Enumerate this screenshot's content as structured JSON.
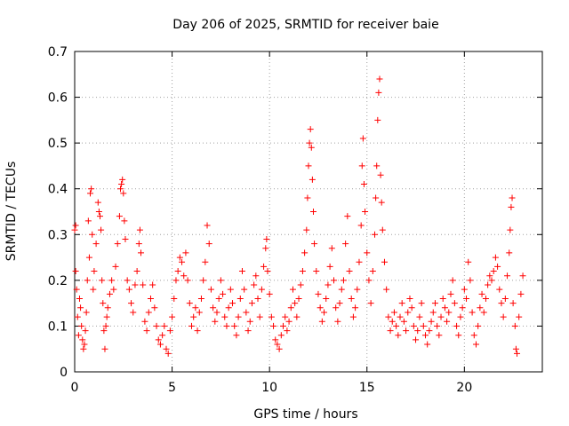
{
  "chart_data": {
    "type": "scatter",
    "title": "Day 206 of 2025, SRMTID for receiver baie",
    "xlabel": "GPS time / hours",
    "ylabel": "SRMTID / TECUs",
    "xlim": [
      0,
      24
    ],
    "ylim": [
      0,
      0.7
    ],
    "xticks": [
      0,
      5,
      10,
      15,
      20
    ],
    "xtick_labels": [
      "0",
      "5",
      "10",
      "15",
      "20"
    ],
    "yticks": [
      0,
      0.1,
      0.2,
      0.3,
      0.4,
      0.5,
      0.6,
      0.7
    ],
    "ytick_labels": [
      "0",
      "0.1",
      "0.2",
      "0.3",
      "0.4",
      "0.5",
      "0.6",
      "0.7"
    ],
    "grid": true,
    "marker": "+",
    "color": "#ff0000",
    "series": [
      {
        "name": "SRMTID",
        "points": [
          [
            0.0,
            0.31
          ],
          [
            0.05,
            0.32
          ],
          [
            0.05,
            0.22
          ],
          [
            0.1,
            0.18
          ],
          [
            0.15,
            0.12
          ],
          [
            0.2,
            0.08
          ],
          [
            0.25,
            0.16
          ],
          [
            0.3,
            0.14
          ],
          [
            0.35,
            0.1
          ],
          [
            0.4,
            0.07
          ],
          [
            0.45,
            0.05
          ],
          [
            0.5,
            0.06
          ],
          [
            0.55,
            0.09
          ],
          [
            0.6,
            0.13
          ],
          [
            0.65,
            0.2
          ],
          [
            0.7,
            0.33
          ],
          [
            0.75,
            0.25
          ],
          [
            0.8,
            0.39
          ],
          [
            0.85,
            0.4
          ],
          [
            0.9,
            0.3
          ],
          [
            0.95,
            0.18
          ],
          [
            1.0,
            0.22
          ],
          [
            1.1,
            0.28
          ],
          [
            1.2,
            0.37
          ],
          [
            1.25,
            0.35
          ],
          [
            1.3,
            0.34
          ],
          [
            1.35,
            0.31
          ],
          [
            1.4,
            0.2
          ],
          [
            1.45,
            0.15
          ],
          [
            1.5,
            0.09
          ],
          [
            1.55,
            0.05
          ],
          [
            1.6,
            0.1
          ],
          [
            1.65,
            0.12
          ],
          [
            1.7,
            0.14
          ],
          [
            1.8,
            0.17
          ],
          [
            1.9,
            0.2
          ],
          [
            2.0,
            0.18
          ],
          [
            2.1,
            0.23
          ],
          [
            2.2,
            0.28
          ],
          [
            2.3,
            0.34
          ],
          [
            2.35,
            0.4
          ],
          [
            2.4,
            0.41
          ],
          [
            2.45,
            0.42
          ],
          [
            2.5,
            0.39
          ],
          [
            2.55,
            0.33
          ],
          [
            2.6,
            0.29
          ],
          [
            2.7,
            0.2
          ],
          [
            2.8,
            0.18
          ],
          [
            2.9,
            0.15
          ],
          [
            3.0,
            0.13
          ],
          [
            3.1,
            0.19
          ],
          [
            3.2,
            0.22
          ],
          [
            3.3,
            0.28
          ],
          [
            3.35,
            0.31
          ],
          [
            3.4,
            0.26
          ],
          [
            3.5,
            0.19
          ],
          [
            3.6,
            0.11
          ],
          [
            3.7,
            0.09
          ],
          [
            3.8,
            0.13
          ],
          [
            3.9,
            0.16
          ],
          [
            4.0,
            0.19
          ],
          [
            4.1,
            0.14
          ],
          [
            4.2,
            0.1
          ],
          [
            4.3,
            0.07
          ],
          [
            4.4,
            0.06
          ],
          [
            4.5,
            0.08
          ],
          [
            4.6,
            0.1
          ],
          [
            4.7,
            0.05
          ],
          [
            4.8,
            0.04
          ],
          [
            4.9,
            0.09
          ],
          [
            5.0,
            0.12
          ],
          [
            5.1,
            0.16
          ],
          [
            5.2,
            0.2
          ],
          [
            5.3,
            0.22
          ],
          [
            5.4,
            0.25
          ],
          [
            5.5,
            0.24
          ],
          [
            5.6,
            0.21
          ],
          [
            5.7,
            0.26
          ],
          [
            5.8,
            0.2
          ],
          [
            5.9,
            0.15
          ],
          [
            6.0,
            0.1
          ],
          [
            6.1,
            0.12
          ],
          [
            6.2,
            0.14
          ],
          [
            6.3,
            0.09
          ],
          [
            6.4,
            0.13
          ],
          [
            6.5,
            0.16
          ],
          [
            6.6,
            0.2
          ],
          [
            6.7,
            0.24
          ],
          [
            6.8,
            0.32
          ],
          [
            6.9,
            0.28
          ],
          [
            7.0,
            0.18
          ],
          [
            7.1,
            0.14
          ],
          [
            7.2,
            0.11
          ],
          [
            7.3,
            0.13
          ],
          [
            7.4,
            0.16
          ],
          [
            7.5,
            0.2
          ],
          [
            7.6,
            0.17
          ],
          [
            7.7,
            0.12
          ],
          [
            7.8,
            0.1
          ],
          [
            7.9,
            0.14
          ],
          [
            8.0,
            0.18
          ],
          [
            8.1,
            0.15
          ],
          [
            8.2,
            0.1
          ],
          [
            8.3,
            0.08
          ],
          [
            8.4,
            0.12
          ],
          [
            8.5,
            0.16
          ],
          [
            8.6,
            0.22
          ],
          [
            8.7,
            0.18
          ],
          [
            8.8,
            0.13
          ],
          [
            8.9,
            0.09
          ],
          [
            9.0,
            0.11
          ],
          [
            9.1,
            0.15
          ],
          [
            9.2,
            0.19
          ],
          [
            9.3,
            0.21
          ],
          [
            9.4,
            0.16
          ],
          [
            9.5,
            0.12
          ],
          [
            9.6,
            0.18
          ],
          [
            9.7,
            0.23
          ],
          [
            9.8,
            0.27
          ],
          [
            9.85,
            0.29
          ],
          [
            9.9,
            0.22
          ],
          [
            10.0,
            0.17
          ],
          [
            10.1,
            0.12
          ],
          [
            10.2,
            0.1
          ],
          [
            10.3,
            0.07
          ],
          [
            10.4,
            0.06
          ],
          [
            10.5,
            0.05
          ],
          [
            10.6,
            0.08
          ],
          [
            10.7,
            0.1
          ],
          [
            10.8,
            0.12
          ],
          [
            10.9,
            0.09
          ],
          [
            11.0,
            0.11
          ],
          [
            11.1,
            0.14
          ],
          [
            11.2,
            0.18
          ],
          [
            11.3,
            0.15
          ],
          [
            11.4,
            0.12
          ],
          [
            11.5,
            0.16
          ],
          [
            11.6,
            0.19
          ],
          [
            11.7,
            0.22
          ],
          [
            11.8,
            0.26
          ],
          [
            11.9,
            0.31
          ],
          [
            11.95,
            0.38
          ],
          [
            12.0,
            0.45
          ],
          [
            12.05,
            0.5
          ],
          [
            12.1,
            0.53
          ],
          [
            12.15,
            0.49
          ],
          [
            12.2,
            0.42
          ],
          [
            12.25,
            0.35
          ],
          [
            12.3,
            0.28
          ],
          [
            12.4,
            0.22
          ],
          [
            12.5,
            0.17
          ],
          [
            12.6,
            0.14
          ],
          [
            12.7,
            0.11
          ],
          [
            12.8,
            0.13
          ],
          [
            12.9,
            0.16
          ],
          [
            13.0,
            0.19
          ],
          [
            13.1,
            0.23
          ],
          [
            13.2,
            0.27
          ],
          [
            13.3,
            0.2
          ],
          [
            13.4,
            0.14
          ],
          [
            13.5,
            0.11
          ],
          [
            13.6,
            0.15
          ],
          [
            13.7,
            0.18
          ],
          [
            13.8,
            0.2
          ],
          [
            13.9,
            0.28
          ],
          [
            14.0,
            0.34
          ],
          [
            14.1,
            0.22
          ],
          [
            14.2,
            0.16
          ],
          [
            14.3,
            0.12
          ],
          [
            14.4,
            0.14
          ],
          [
            14.5,
            0.18
          ],
          [
            14.6,
            0.24
          ],
          [
            14.7,
            0.32
          ],
          [
            14.75,
            0.45
          ],
          [
            14.8,
            0.51
          ],
          [
            14.85,
            0.41
          ],
          [
            14.9,
            0.35
          ],
          [
            15.0,
            0.26
          ],
          [
            15.1,
            0.2
          ],
          [
            15.2,
            0.15
          ],
          [
            15.3,
            0.22
          ],
          [
            15.4,
            0.3
          ],
          [
            15.45,
            0.38
          ],
          [
            15.5,
            0.45
          ],
          [
            15.55,
            0.55
          ],
          [
            15.6,
            0.61
          ],
          [
            15.65,
            0.64
          ],
          [
            15.7,
            0.43
          ],
          [
            15.75,
            0.37
          ],
          [
            15.8,
            0.31
          ],
          [
            15.9,
            0.24
          ],
          [
            16.0,
            0.18
          ],
          [
            16.1,
            0.12
          ],
          [
            16.2,
            0.09
          ],
          [
            16.3,
            0.11
          ],
          [
            16.4,
            0.13
          ],
          [
            16.5,
            0.1
          ],
          [
            16.6,
            0.08
          ],
          [
            16.7,
            0.12
          ],
          [
            16.8,
            0.15
          ],
          [
            16.9,
            0.11
          ],
          [
            17.0,
            0.09
          ],
          [
            17.1,
            0.13
          ],
          [
            17.2,
            0.16
          ],
          [
            17.3,
            0.14
          ],
          [
            17.4,
            0.1
          ],
          [
            17.5,
            0.07
          ],
          [
            17.6,
            0.09
          ],
          [
            17.7,
            0.12
          ],
          [
            17.8,
            0.15
          ],
          [
            17.9,
            0.1
          ],
          [
            18.0,
            0.08
          ],
          [
            18.1,
            0.06
          ],
          [
            18.2,
            0.09
          ],
          [
            18.3,
            0.11
          ],
          [
            18.4,
            0.13
          ],
          [
            18.5,
            0.15
          ],
          [
            18.6,
            0.1
          ],
          [
            18.7,
            0.08
          ],
          [
            18.8,
            0.12
          ],
          [
            18.9,
            0.16
          ],
          [
            19.0,
            0.14
          ],
          [
            19.1,
            0.11
          ],
          [
            19.2,
            0.13
          ],
          [
            19.3,
            0.17
          ],
          [
            19.4,
            0.2
          ],
          [
            19.5,
            0.15
          ],
          [
            19.6,
            0.1
          ],
          [
            19.7,
            0.08
          ],
          [
            19.8,
            0.12
          ],
          [
            19.9,
            0.14
          ],
          [
            20.0,
            0.18
          ],
          [
            20.1,
            0.16
          ],
          [
            20.2,
            0.24
          ],
          [
            20.3,
            0.2
          ],
          [
            20.4,
            0.13
          ],
          [
            20.5,
            0.08
          ],
          [
            20.6,
            0.06
          ],
          [
            20.7,
            0.1
          ],
          [
            20.8,
            0.14
          ],
          [
            20.9,
            0.17
          ],
          [
            21.0,
            0.13
          ],
          [
            21.1,
            0.16
          ],
          [
            21.2,
            0.19
          ],
          [
            21.3,
            0.21
          ],
          [
            21.4,
            0.2
          ],
          [
            21.5,
            0.22
          ],
          [
            21.6,
            0.25
          ],
          [
            21.7,
            0.23
          ],
          [
            21.8,
            0.18
          ],
          [
            21.9,
            0.15
          ],
          [
            22.0,
            0.12
          ],
          [
            22.1,
            0.16
          ],
          [
            22.2,
            0.21
          ],
          [
            22.3,
            0.26
          ],
          [
            22.35,
            0.31
          ],
          [
            22.4,
            0.36
          ],
          [
            22.45,
            0.38
          ],
          [
            22.5,
            0.15
          ],
          [
            22.6,
            0.1
          ],
          [
            22.65,
            0.05
          ],
          [
            22.7,
            0.04
          ],
          [
            22.8,
            0.12
          ],
          [
            22.9,
            0.17
          ],
          [
            23.0,
            0.21
          ]
        ]
      }
    ]
  }
}
